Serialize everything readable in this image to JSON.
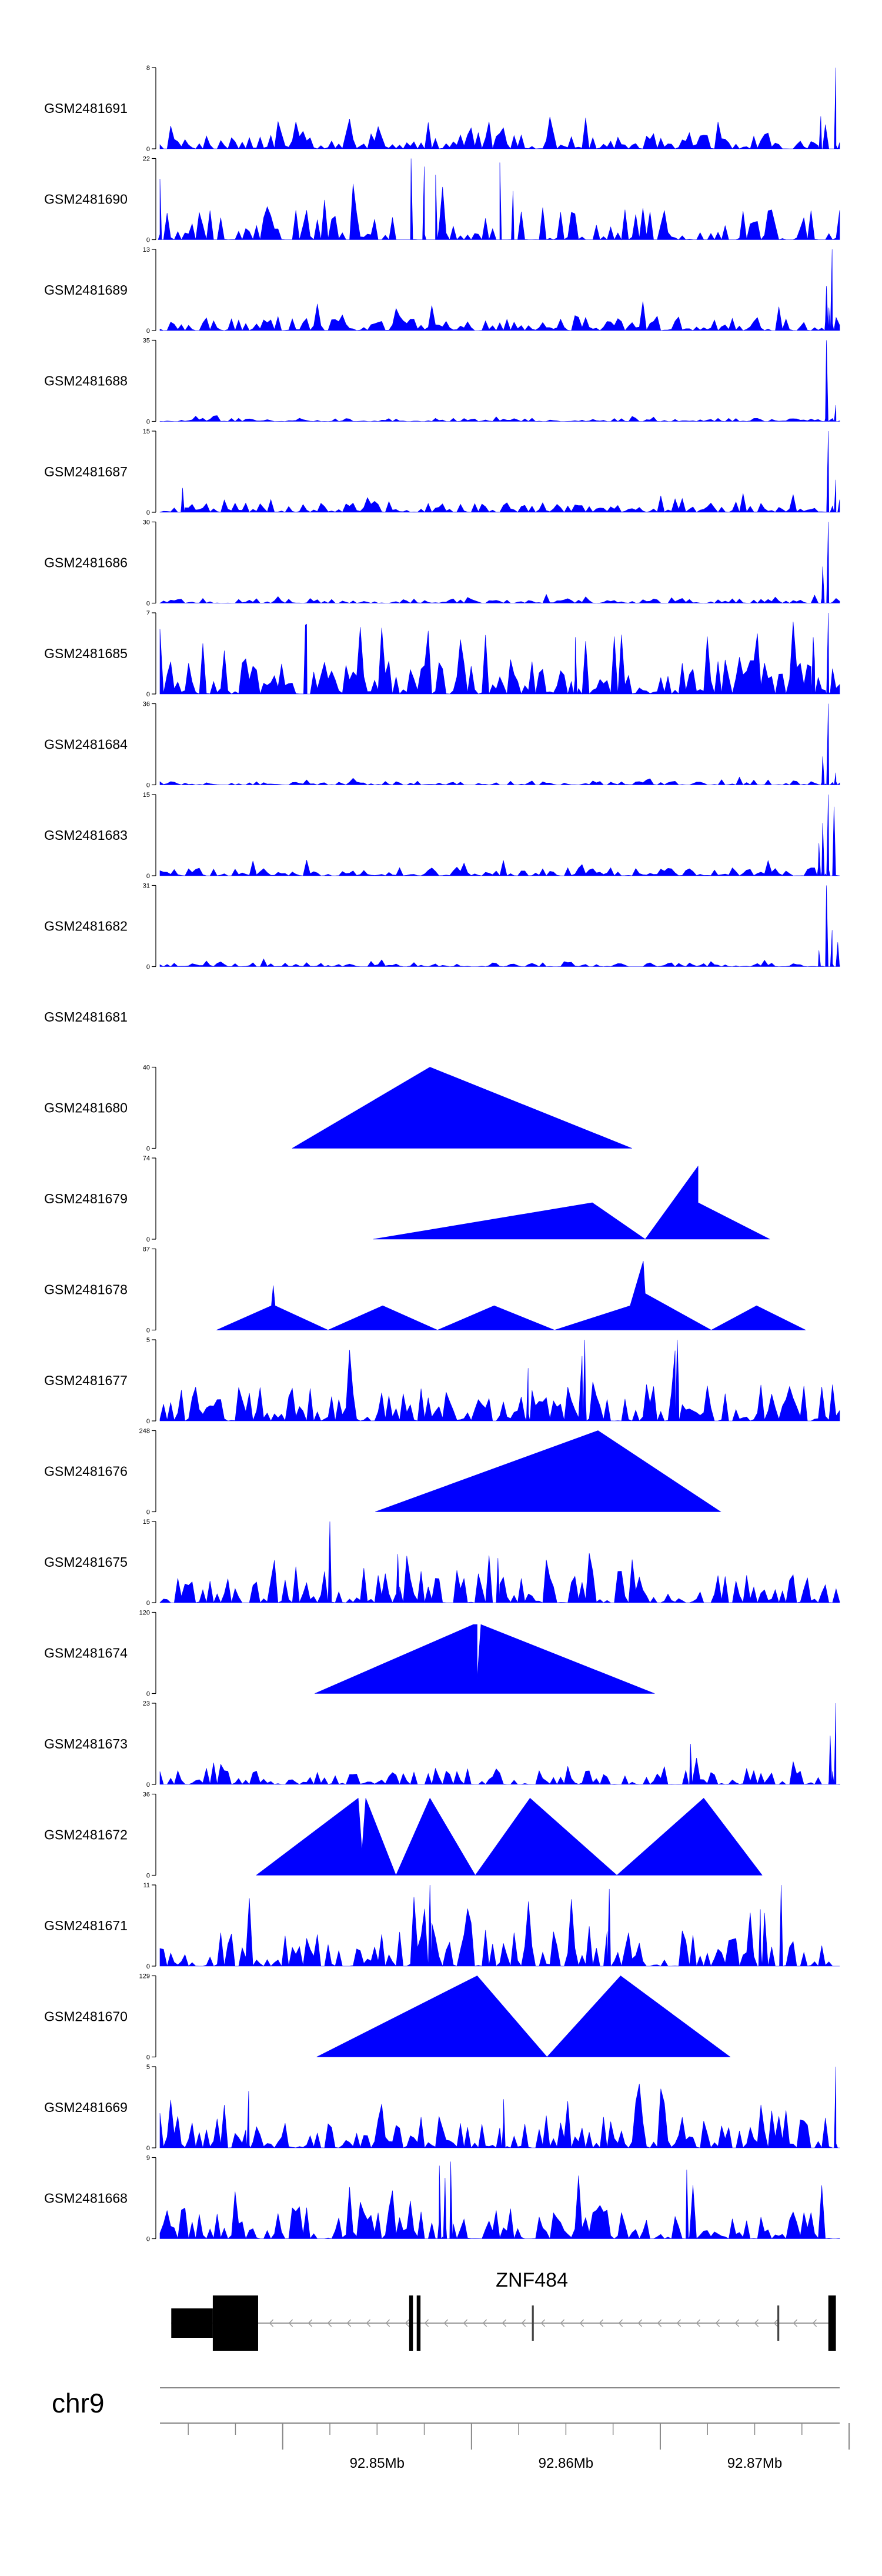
{
  "chart_data": {
    "type": "area",
    "title": "",
    "chromosome": "chr9",
    "gene": {
      "name": "ZNF484",
      "strand": "-",
      "start_mb": 92.8391,
      "end_mb": 92.8743,
      "exons": [
        {
          "start_mb": 92.8391,
          "end_mb": 92.8413,
          "kind": "utr"
        },
        {
          "start_mb": 92.8413,
          "end_mb": 92.8437,
          "kind": "cds"
        },
        {
          "start_mb": 92.8517,
          "end_mb": 92.8519,
          "kind": "cds"
        },
        {
          "start_mb": 92.8521,
          "end_mb": 92.8523,
          "kind": "cds"
        },
        {
          "start_mb": 92.8582,
          "end_mb": 92.8583,
          "kind": "utr"
        },
        {
          "start_mb": 92.8712,
          "end_mb": 92.8713,
          "kind": "utr"
        },
        {
          "start_mb": 92.8739,
          "end_mb": 92.8743,
          "kind": "cds"
        }
      ]
    },
    "x_axis": {
      "domain_mb": [
        92.8385,
        92.8745
      ],
      "major_ticks_mb": [
        92.845,
        92.855,
        92.865,
        92.875
      ],
      "major_tick_labels": [
        "92.85Mb",
        "92.86Mb",
        "92.87Mb"
      ],
      "major_labeled_mb": [
        92.85,
        92.86,
        92.87
      ],
      "minor_tick_step_mb": 0.0025
    },
    "series": [
      {
        "name": "GSM2481691",
        "ymax": 8,
        "pattern": "noise",
        "peak": 0.2,
        "density": 0.9,
        "seed": 91,
        "spikes": [
          [
            92.8743,
            1.0
          ],
          [
            92.8735,
            0.4
          ]
        ]
      },
      {
        "name": "GSM2481690",
        "ymax": 22,
        "pattern": "noise",
        "peak": 0.4,
        "density": 0.55,
        "seed": 90,
        "spikes": [
          [
            92.8385,
            0.75
          ],
          [
            92.8518,
            1.0
          ],
          [
            92.8525,
            0.9
          ],
          [
            92.8531,
            0.8
          ],
          [
            92.8565,
            0.95
          ],
          [
            92.8572,
            0.6
          ]
        ]
      },
      {
        "name": "GSM2481689",
        "ymax": 13,
        "pattern": "noise",
        "peak": 0.18,
        "density": 0.95,
        "seed": 89,
        "spikes": [
          [
            92.8741,
            1.0
          ],
          [
            92.8738,
            0.55
          ]
        ]
      },
      {
        "name": "GSM2481688",
        "ymax": 35,
        "pattern": "noise",
        "peak": 0.04,
        "density": 0.9,
        "seed": 88,
        "spikes": [
          [
            92.8738,
            1.0
          ],
          [
            92.8743,
            0.2
          ]
        ]
      },
      {
        "name": "GSM2481687",
        "ymax": 15,
        "pattern": "noise",
        "peak": 0.12,
        "density": 0.95,
        "seed": 87,
        "spikes": [
          [
            92.8739,
            1.0
          ],
          [
            92.8743,
            0.4
          ],
          [
            92.8397,
            0.3
          ]
        ]
      },
      {
        "name": "GSM2481686",
        "ymax": 30,
        "pattern": "noise",
        "peak": 0.06,
        "density": 0.9,
        "seed": 86,
        "spikes": [
          [
            92.8739,
            1.0
          ],
          [
            92.8736,
            0.45
          ]
        ]
      },
      {
        "name": "GSM2481685",
        "ymax": 7,
        "pattern": "noise",
        "peak": 0.45,
        "density": 0.95,
        "seed": 85,
        "spikes": [
          [
            92.8739,
            1.0
          ],
          [
            92.8731,
            0.7
          ],
          [
            92.8462,
            0.85
          ],
          [
            92.8605,
            0.7
          ]
        ]
      },
      {
        "name": "GSM2481684",
        "ymax": 36,
        "pattern": "noise",
        "peak": 0.05,
        "density": 0.9,
        "seed": 84,
        "spikes": [
          [
            92.8739,
            1.0
          ],
          [
            92.8736,
            0.35
          ],
          [
            92.8743,
            0.15
          ]
        ]
      },
      {
        "name": "GSM2481683",
        "ymax": 15,
        "pattern": "noise",
        "peak": 0.1,
        "density": 0.95,
        "seed": 83,
        "spikes": [
          [
            92.8739,
            1.0
          ],
          [
            92.8742,
            0.85
          ],
          [
            92.8736,
            0.65
          ],
          [
            92.8734,
            0.4
          ]
        ]
      },
      {
        "name": "GSM2481682",
        "ymax": 31,
        "pattern": "noise",
        "peak": 0.05,
        "density": 0.9,
        "seed": 82,
        "spikes": [
          [
            92.8738,
            1.0
          ],
          [
            92.8741,
            0.45
          ],
          [
            92.8744,
            0.3
          ],
          [
            92.8734,
            0.2
          ]
        ]
      },
      {
        "name": "GSM2481681",
        "ymax": null,
        "pattern": "empty"
      },
      {
        "name": "GSM2481680",
        "ymax": 40,
        "pattern": "points",
        "points": [
          [
            92.8455,
            0
          ],
          [
            92.8528,
            1.0
          ],
          [
            92.8635,
            0
          ]
        ]
      },
      {
        "name": "GSM2481679",
        "ymax": 74,
        "pattern": "points",
        "points": [
          [
            92.8498,
            0
          ],
          [
            92.8614,
            0.45
          ],
          [
            92.8642,
            0
          ],
          [
            92.867,
            0.9
          ],
          [
            92.867,
            0.45
          ],
          [
            92.8708,
            0
          ]
        ]
      },
      {
        "name": "GSM2481678",
        "ymax": 87,
        "pattern": "points",
        "points": [
          [
            92.8415,
            0
          ],
          [
            92.8444,
            0.3
          ],
          [
            92.8445,
            0.55
          ],
          [
            92.8446,
            0.3
          ],
          [
            92.8474,
            0
          ],
          [
            92.8503,
            0.3
          ],
          [
            92.8532,
            0
          ],
          [
            92.8562,
            0.3
          ],
          [
            92.8594,
            0
          ],
          [
            92.8634,
            0.3
          ],
          [
            92.8641,
            0.85
          ],
          [
            92.8642,
            0.45
          ],
          [
            92.8677,
            0
          ],
          [
            92.8701,
            0.3
          ],
          [
            92.8727,
            0
          ]
        ]
      },
      {
        "name": "GSM2481677",
        "ymax": 5,
        "pattern": "noise",
        "peak": 0.45,
        "density": 0.95,
        "seed": 77,
        "spikes": [
          [
            92.861,
            1.0
          ],
          [
            92.8659,
            1.0
          ],
          [
            92.858,
            0.65
          ]
        ]
      },
      {
        "name": "GSM2481676",
        "ymax": 248,
        "pattern": "points",
        "points": [
          [
            92.8499,
            0
          ],
          [
            92.8617,
            1.0
          ],
          [
            92.8682,
            0
          ]
        ]
      },
      {
        "name": "GSM2481675",
        "ymax": 15,
        "pattern": "noise",
        "peak": 0.4,
        "density": 0.8,
        "seed": 75,
        "spikes": [
          [
            92.8475,
            1.0
          ],
          [
            92.8511,
            0.6
          ],
          [
            92.8564,
            0.55
          ]
        ]
      },
      {
        "name": "GSM2481674",
        "ymax": 120,
        "pattern": "points",
        "points": [
          [
            92.8467,
            0
          ],
          [
            92.8551,
            0.85
          ],
          [
            92.8553,
            0.85
          ],
          [
            92.8553,
            0.18
          ],
          [
            92.8555,
            0.85
          ],
          [
            92.8647,
            0
          ]
        ]
      },
      {
        "name": "GSM2481673",
        "ymax": 23,
        "pattern": "noise",
        "peak": 0.2,
        "density": 0.8,
        "seed": 73,
        "spikes": [
          [
            92.8743,
            1.0
          ],
          [
            92.874,
            0.6
          ],
          [
            92.8666,
            0.5
          ]
        ]
      },
      {
        "name": "GSM2481672",
        "ymax": 36,
        "pattern": "points",
        "points": [
          [
            92.8436,
            0
          ],
          [
            92.849,
            0.95
          ],
          [
            92.8492,
            0.3
          ],
          [
            92.8494,
            0.95
          ],
          [
            92.851,
            0
          ],
          [
            92.8528,
            0.95
          ],
          [
            92.8552,
            0
          ],
          [
            92.8581,
            0.95
          ],
          [
            92.8627,
            0
          ],
          [
            92.8673,
            0.95
          ],
          [
            92.8704,
            0
          ]
        ]
      },
      {
        "name": "GSM2481671",
        "ymax": 11,
        "pattern": "noise",
        "peak": 0.45,
        "density": 0.8,
        "seed": 71,
        "spikes": [
          [
            92.8528,
            1.0
          ],
          [
            92.8623,
            0.95
          ],
          [
            92.8714,
            1.0
          ],
          [
            92.8703,
            0.7
          ]
        ]
      },
      {
        "name": "GSM2481670",
        "ymax": 129,
        "pattern": "points",
        "points": [
          [
            92.8468,
            0
          ],
          [
            92.8553,
            1.0
          ],
          [
            92.859,
            0
          ],
          [
            92.8629,
            1.0
          ],
          [
            92.8687,
            0
          ]
        ]
      },
      {
        "name": "GSM2481669",
        "ymax": 5,
        "pattern": "noise",
        "peak": 0.4,
        "density": 0.95,
        "seed": 69,
        "spikes": [
          [
            92.8743,
            1.0
          ],
          [
            92.8432,
            0.7
          ],
          [
            92.8567,
            0.6
          ]
        ]
      },
      {
        "name": "GSM2481668",
        "ymax": 9,
        "pattern": "noise",
        "peak": 0.4,
        "density": 0.85,
        "seed": 68,
        "spikes": [
          [
            92.8664,
            0.85
          ],
          [
            92.8533,
            0.9
          ],
          [
            92.8539,
            0.95
          ],
          [
            92.8536,
            0.75
          ]
        ]
      }
    ]
  }
}
